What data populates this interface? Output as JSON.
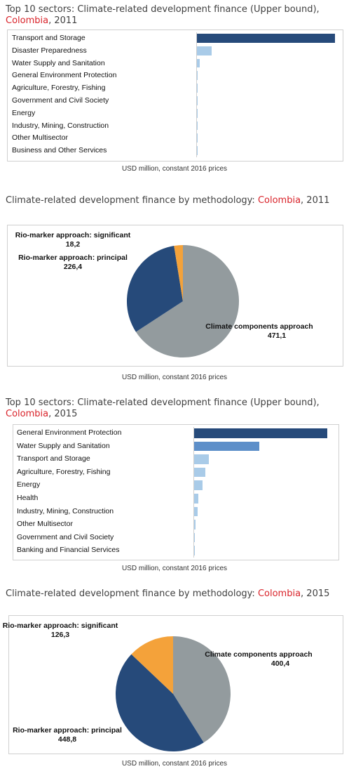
{
  "chart_data": [
    {
      "type": "bar",
      "orientation": "horizontal",
      "title_pre": "Top 10 sectors: Climate-related development finance (Upper bound), ",
      "country": "Colombia",
      "title_post": ", 2011",
      "categories": [
        "Transport and Storage",
        "Disaster Preparedness",
        "Water Supply and Sanitation",
        "General Environment Protection",
        "Agriculture, Forestry, Fishing",
        "Government and Civil Society",
        "Energy",
        "Industry, Mining, Construction",
        "Other Multisector",
        "Business and Other Services"
      ],
      "values": [
        660,
        70,
        12,
        3,
        2,
        2,
        1.5,
        1,
        1,
        1
      ],
      "xlim": [
        0,
        660
      ],
      "caption": "USD million, constant 2016 prices",
      "colors": [
        "#264a7a",
        "#a9cbe8",
        "#a9cbe8",
        "#a9cbe8",
        "#a9cbe8",
        "#a9cbe8",
        "#a9cbe8",
        "#a9cbe8",
        "#a9cbe8",
        "#a9cbe8"
      ]
    },
    {
      "type": "pie",
      "title_pre": "Climate-related development finance by methodology: ",
      "country": "Colombia",
      "title_post": ", 2011",
      "slices": [
        {
          "label": "Climate components approach",
          "value": 471.1,
          "value_text": "471,1",
          "color": "#939b9e"
        },
        {
          "label": "Rio-marker approach: principal",
          "value": 226.4,
          "value_text": "226,4",
          "color": "#264a7a"
        },
        {
          "label": "Rio-marker approach: significant",
          "value": 18.2,
          "value_text": "18,2",
          "color": "#f4a23a"
        }
      ],
      "caption": "USD million, constant 2016 prices"
    },
    {
      "type": "bar",
      "orientation": "horizontal",
      "title_pre": "Top 10 sectors: Climate-related development finance (Upper bound), ",
      "country": "Colombia",
      "title_post": ", 2015",
      "categories": [
        "General Environment Protection",
        "Water Supply and Sanitation",
        "Transport and Storage",
        "Agriculture, Forestry, Fishing",
        "Energy",
        "Health",
        "Industry, Mining, Construction",
        "Other Multisector",
        "Government and Civil Society",
        "Banking and Financial Services"
      ],
      "values": [
        500,
        245,
        55,
        42,
        32,
        15,
        12,
        4,
        3,
        2
      ],
      "xlim": [
        0,
        500
      ],
      "caption": "USD million, constant 2016 prices",
      "colors": [
        "#264a7a",
        "#5d8fc9",
        "#a9cbe8",
        "#a9cbe8",
        "#a9cbe8",
        "#a9cbe8",
        "#a9cbe8",
        "#a9cbe8",
        "#a9cbe8",
        "#a9cbe8"
      ]
    },
    {
      "type": "pie",
      "title_pre": "Climate-related development finance by methodology: ",
      "country": "Colombia",
      "title_post": ", 2015",
      "slices": [
        {
          "label": "Climate components approach",
          "value": 400.4,
          "value_text": "400,4",
          "color": "#939b9e"
        },
        {
          "label": "Rio-marker approach: principal",
          "value": 448.8,
          "value_text": "448,8",
          "color": "#264a7a"
        },
        {
          "label": "Rio-marker approach: significant",
          "value": 126.3,
          "value_text": "126,3",
          "color": "#f4a23a"
        }
      ],
      "caption": "USD million, constant 2016 prices"
    }
  ]
}
